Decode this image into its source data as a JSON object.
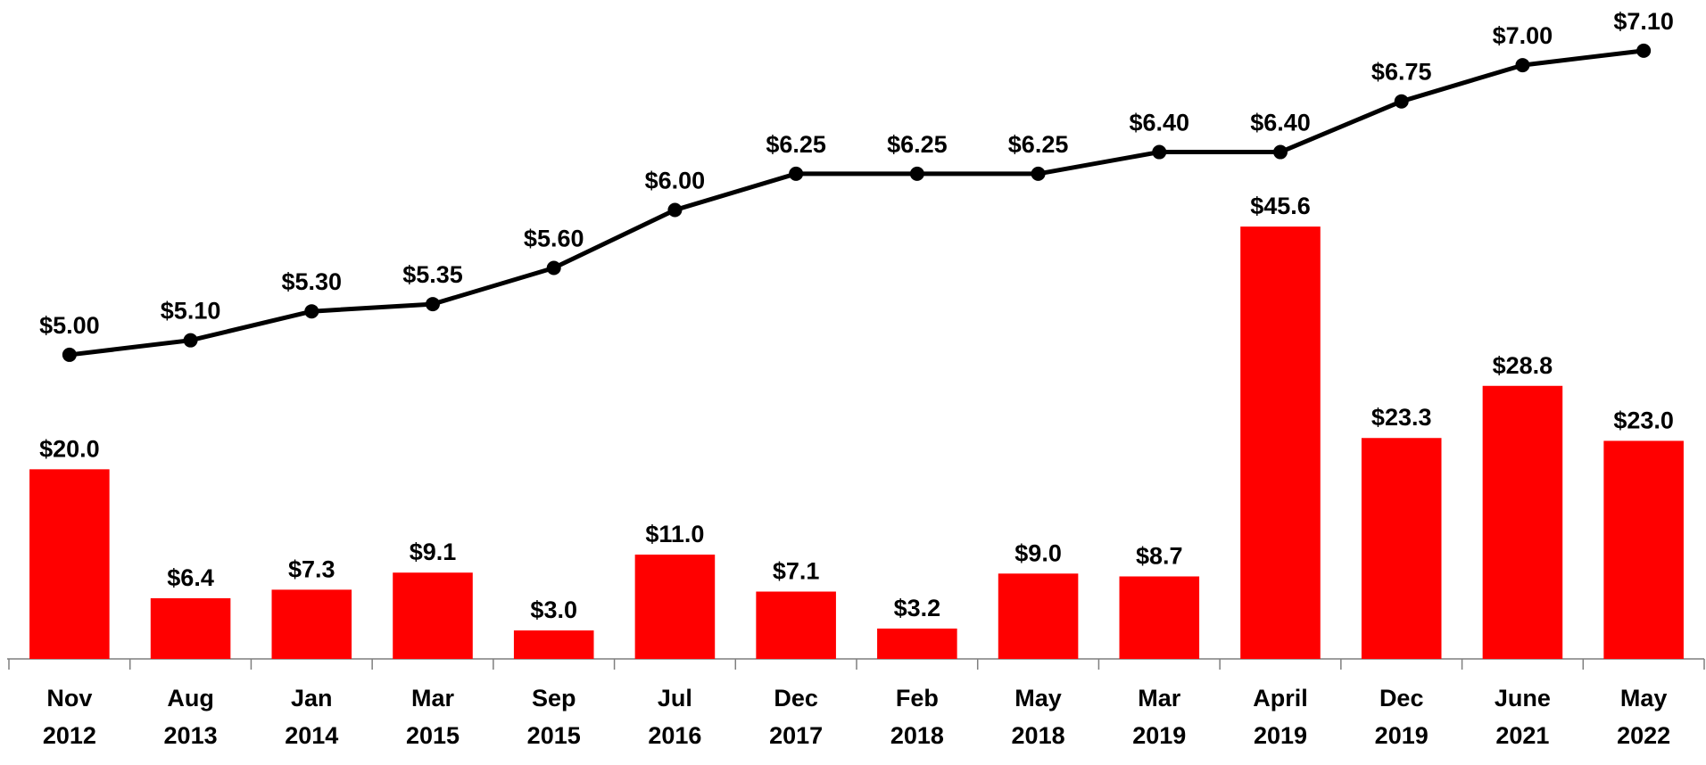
{
  "chart_data": {
    "type": "bar",
    "categories": [
      "Nov 2012",
      "Aug 2013",
      "Jan 2014",
      "Mar 2015",
      "Sep 2015",
      "Jul 2016",
      "Dec 2017",
      "Feb 2018",
      "May 2018",
      "Mar 2019",
      "April 2019",
      "Dec 2019",
      "June 2021",
      "May 2022"
    ],
    "series": [
      {
        "type": "bar",
        "color": "#ff0000",
        "values": [
          20.0,
          6.4,
          7.3,
          9.1,
          3.0,
          11.0,
          7.1,
          3.2,
          9.0,
          8.7,
          45.6,
          23.3,
          28.8,
          23.0
        ],
        "value_labels": [
          "$20.0",
          "$6.4",
          "$7.3",
          "$9.1",
          "$3.0",
          "$11.0",
          "$7.1",
          "$3.2",
          "$9.0",
          "$8.7",
          "$45.6",
          "$23.3",
          "$28.8",
          "$23.0"
        ]
      },
      {
        "type": "line",
        "axis": "y2",
        "color": "#000000",
        "values": [
          5.0,
          5.1,
          5.3,
          5.35,
          5.6,
          6.0,
          6.25,
          6.25,
          6.25,
          6.4,
          6.4,
          6.75,
          7.0,
          7.1
        ],
        "value_labels": [
          "$5.00",
          "$5.10",
          "$5.30",
          "$5.35",
          "$5.60",
          "$6.00",
          "$6.25",
          "$6.25",
          "$6.25",
          "$6.40",
          "$6.40",
          "$6.75",
          "$7.00",
          "$7.10"
        ]
      }
    ],
    "ylim": [
      0,
      69.5
    ],
    "y2lim": [
      2.9,
      7.45
    ]
  }
}
